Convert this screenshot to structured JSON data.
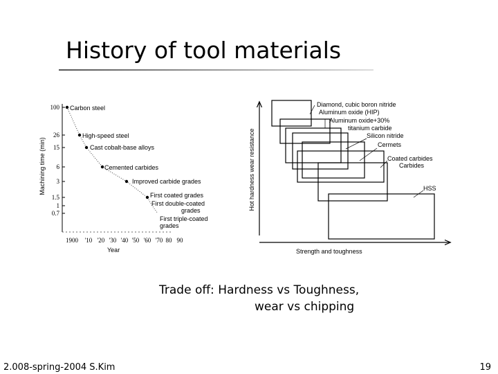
{
  "title": "History of tool materials",
  "figure_left": {
    "y_axis_label": "Machining time (min)",
    "x_axis_label": "Year",
    "y_ticks": [
      "100",
      "26",
      "15",
      "6",
      "3",
      "1.5",
      "1",
      "0.7"
    ],
    "x_ticks": [
      "1900",
      "'10",
      "'20",
      "'30",
      "'40",
      "'50",
      "'60",
      "'70",
      "80",
      "90"
    ],
    "labels": [
      "Carbon steel",
      "High-speed steel",
      "Cast cobalt-base alloys",
      "Cemented carbides",
      "Improved carbide grades",
      "First coated grades",
      "First double-coated",
      "grades",
      "First triple-coated",
      "grades"
    ]
  },
  "figure_right": {
    "y_axis_label": "Hot hardness wear resistance",
    "x_axis_label": "Strength and toughness",
    "labels": [
      "Diamond, cubic boron nitride",
      "Aluminum oxide (HIP)",
      "Aluminum oxide+30%",
      "titanium carbide",
      "Silicon nitride",
      "Cermets",
      "Coated carbides",
      "Carbides",
      "HSS"
    ]
  },
  "caption": [
    "Trade off: Hardness vs Toughness,",
    "wear vs chipping"
  ],
  "footer": "2.008-spring-2004 S.Kim",
  "page_number": "19"
}
